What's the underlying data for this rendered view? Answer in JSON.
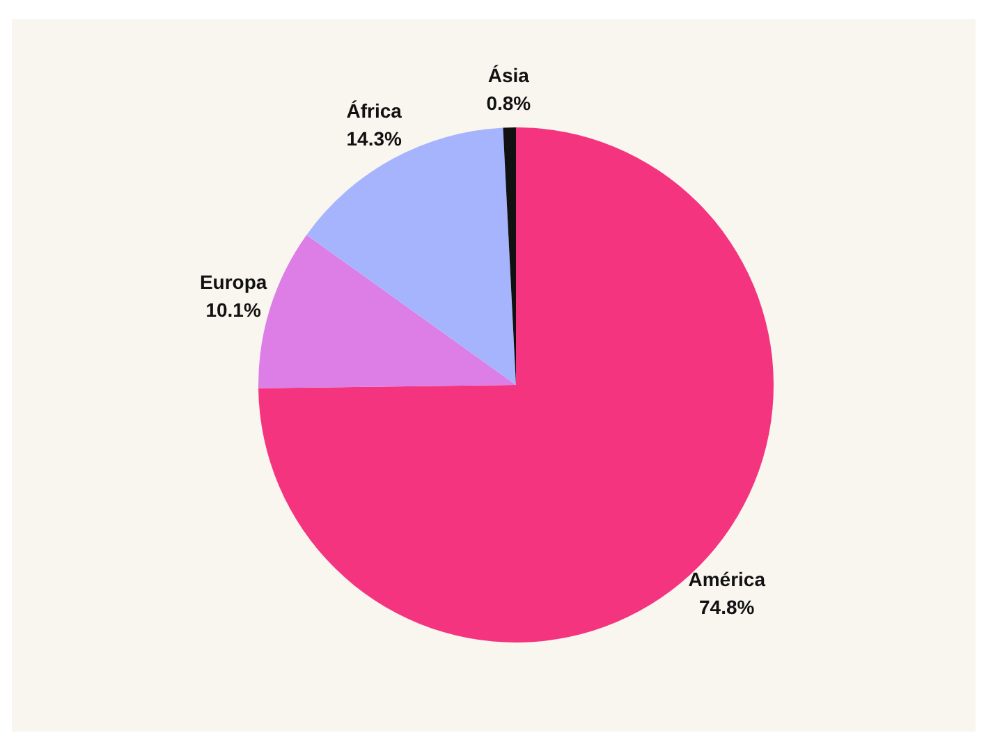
{
  "chart_data": {
    "type": "pie",
    "categories": [
      "América",
      "Europa",
      "África",
      "Ásia"
    ],
    "values": [
      74.8,
      10.1,
      14.3,
      0.8
    ],
    "value_labels": [
      "74.8%",
      "10.1%",
      "14.3%",
      "0.8%"
    ],
    "colors": [
      "#f4347f",
      "#dd7de6",
      "#a5b4fc",
      "#111111"
    ]
  }
}
